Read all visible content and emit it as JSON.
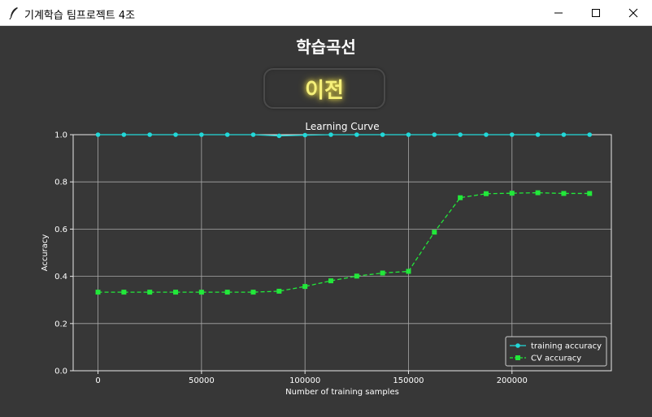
{
  "window": {
    "title": "기계학습 팀프로젝트 4조",
    "buttons": [
      "minimize",
      "maximize",
      "close"
    ]
  },
  "page": {
    "heading": "학습곡선",
    "prev_button_label": "이전"
  },
  "colors": {
    "background": "#373737",
    "train": "#22d8d8",
    "cv": "#22e83a",
    "prev_text": "#f5f07a"
  },
  "chart_data": {
    "type": "line",
    "title": "Learning Curve",
    "xlabel": "Number of training samples",
    "ylabel": "Accuracy",
    "xlim": [
      -12000,
      248000
    ],
    "ylim": [
      0.0,
      1.0
    ],
    "xticks": [
      0,
      50000,
      100000,
      150000,
      200000
    ],
    "yticks": [
      0.0,
      0.2,
      0.4,
      0.6,
      0.8,
      1.0
    ],
    "xtick_labels": [
      "0",
      "50000",
      "100000",
      "150000",
      "200000"
    ],
    "ytick_labels": [
      "0.0",
      "0.2",
      "0.4",
      "0.6",
      "0.8",
      "1.0"
    ],
    "grid": true,
    "legend_position": "bottom-right",
    "x": [
      0,
      12500,
      25000,
      37500,
      50000,
      62500,
      75000,
      87500,
      100000,
      112500,
      125000,
      137500,
      150000,
      162500,
      175000,
      187500,
      200000,
      212500,
      225000,
      237500
    ],
    "series": [
      {
        "name": "training accuracy",
        "marker": "circle",
        "linestyle": "solid",
        "values": [
          1.0,
          1.0,
          1.0,
          1.0,
          1.0,
          1.0,
          1.0,
          0.995,
          0.998,
          1.0,
          1.0,
          1.0,
          1.0,
          1.0,
          1.0,
          1.0,
          1.0,
          1.0,
          1.0,
          1.0
        ]
      },
      {
        "name": "CV accuracy",
        "marker": "square",
        "linestyle": "dashed",
        "values": [
          0.333,
          0.333,
          0.333,
          0.333,
          0.333,
          0.333,
          0.333,
          0.337,
          0.357,
          0.381,
          0.401,
          0.414,
          0.421,
          0.587,
          0.733,
          0.75,
          0.752,
          0.754,
          0.751,
          0.751
        ]
      }
    ]
  }
}
